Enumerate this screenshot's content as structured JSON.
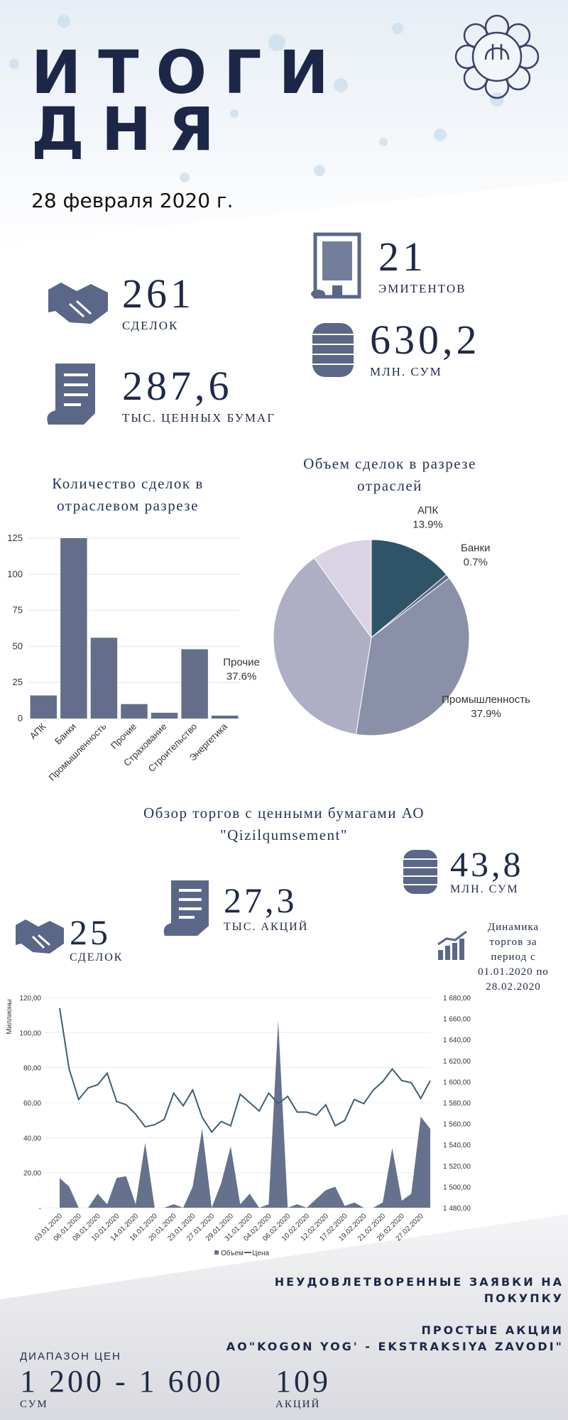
{
  "header": {
    "title": [
      "ИТОГИ",
      "ДНЯ"
    ],
    "date": "28 февраля 2020 г."
  },
  "summary": [
    {
      "value": "261",
      "label": "СДЕЛОК"
    },
    {
      "value": "21",
      "label": "ЭМИТЕНТОВ"
    },
    {
      "value": "287,6",
      "label": "ТЫС. ЦЕННЫХ БУМАГ"
    },
    {
      "value": "630,2",
      "label": "МЛН. СУМ"
    }
  ],
  "chart_data": [
    {
      "type": "bar",
      "title": "Количество сделок в отраслевом разрезе",
      "categories": [
        "АПК",
        "Банки",
        "Промышленность",
        "Прочие",
        "Страхование",
        "Строительство",
        "Энергетика"
      ],
      "values": [
        16,
        125,
        56,
        10,
        4,
        48,
        2
      ],
      "color": "#646e8a",
      "ylim": [
        0,
        125
      ],
      "yticks": [
        0,
        25,
        50,
        75,
        100,
        125
      ],
      "grid": true
    },
    {
      "type": "pie",
      "title": "Объем сделок в разрезе отраслей",
      "categories": [
        "АПК",
        "Банки",
        "Промышленность",
        "Прочие",
        null
      ],
      "values": [
        13.9,
        0.7,
        37.9,
        37.6,
        9.9
      ],
      "value_labels": [
        "13.9%",
        "0.7%",
        "37.9%",
        "37.6%",
        null
      ],
      "colors": [
        "#2f5468",
        "#5f6c86",
        "#8a90a8",
        "#aeafc5",
        "#d9d3e3"
      ]
    },
    {
      "type": "combo",
      "y_label": "Миллионы",
      "categories": [
        "03.01.2020",
        null,
        "06.01.2020",
        null,
        "08.01.2020",
        null,
        "10.01.2020",
        null,
        "14.01.2020",
        null,
        "16.01.2020",
        null,
        "20.01.2020",
        null,
        "23.01.2020",
        null,
        "27.01.2020",
        null,
        "29.01.2020",
        null,
        "31.01.2020",
        null,
        "04.02.2020",
        null,
        "06.02.2020",
        null,
        "10.02.2020",
        null,
        "12.02.2020",
        null,
        "17.02.2020",
        null,
        "19.02.2020",
        null,
        "21.02.2020",
        null,
        "25.02.2020",
        null,
        "27.02.2020",
        null
      ],
      "series": [
        {
          "name": "Объем",
          "type": "area",
          "color": "#66718d",
          "values": [
            17,
            12,
            0,
            0,
            8,
            2,
            17,
            18,
            2,
            37,
            0,
            0,
            2,
            0,
            12,
            45,
            0,
            14,
            35,
            2,
            8,
            0,
            2,
            107,
            0,
            2,
            0,
            5,
            10,
            12,
            1,
            3,
            0,
            0,
            3,
            34,
            4,
            8,
            52,
            45
          ]
        },
        {
          "name": "Цена",
          "type": "line",
          "axis": "y2",
          "color": "#3d5f73",
          "values": [
            1670,
            1612,
            1583,
            1594,
            1597,
            1608,
            1581,
            1578,
            1569,
            1557,
            1559,
            1564,
            1589,
            1577,
            1592,
            1566,
            1552,
            1562,
            1558,
            1588,
            1580,
            1572,
            1589,
            1579,
            1586,
            1571,
            1571,
            1568,
            1578,
            1558,
            1563,
            1583,
            1579,
            1592,
            1600,
            1612,
            1601,
            1599,
            1584,
            1601
          ]
        }
      ],
      "ylim": [
        0,
        120
      ],
      "yticks": [
        {
          "value": 0,
          "label": "-"
        },
        {
          "value": 20,
          "label": "20,00"
        },
        {
          "value": 40,
          "label": "40,00"
        },
        {
          "value": 60,
          "label": "60,00"
        },
        {
          "value": 80,
          "label": "80,00"
        },
        {
          "value": 100,
          "label": "100,00"
        },
        {
          "value": 120,
          "label": "120,00"
        }
      ],
      "y2lim": [
        1480,
        1680
      ],
      "y2ticks": [
        {
          "value": 1480,
          "label": "1 480,00"
        },
        {
          "value": 1500,
          "label": "1 500,00"
        },
        {
          "value": 1520,
          "label": "1 520,00"
        },
        {
          "value": 1540,
          "label": "1 540,00"
        },
        {
          "value": 1560,
          "label": "1 560,00"
        },
        {
          "value": 1580,
          "label": "1 580,00"
        },
        {
          "value": 1600,
          "label": "1 600,00"
        },
        {
          "value": 1620,
          "label": "1 620,00"
        },
        {
          "value": 1640,
          "label": "1 640,00"
        },
        {
          "value": 1660,
          "label": "1 660,00"
        },
        {
          "value": 1680,
          "label": "1 680,00"
        }
      ],
      "grid": true
    }
  ],
  "company": {
    "title": "Обзор торгов с ценными бумагами АО \"Qizilqumsement\"",
    "stats": [
      {
        "value": "43,8",
        "label": "МЛН. СУМ"
      },
      {
        "value": "27,3",
        "label": "ТЫС. АКЦИЙ"
      },
      {
        "value": "25",
        "label": "СДЕЛОК"
      }
    ],
    "dynamics": "Динамика торгов за период с 01.01.2020 по 28.02.2020"
  },
  "orders": {
    "title": "НЕУДОВЛЕТВОРЕННЫЕ ЗАЯВКИ НА ПОКУПКУ",
    "security": "ПРОСТЫЕ АКЦИИ",
    "issuer": "АО\"KOGON YOG' - EKSTRAKSIYA ZAVODI\"",
    "price_label": "ДИАПАЗОН ЦЕН",
    "price_range": "1 200 - 1 600",
    "price_unit": "СУМ",
    "quantity": "109",
    "quantity_unit": "АКЦИЙ"
  }
}
